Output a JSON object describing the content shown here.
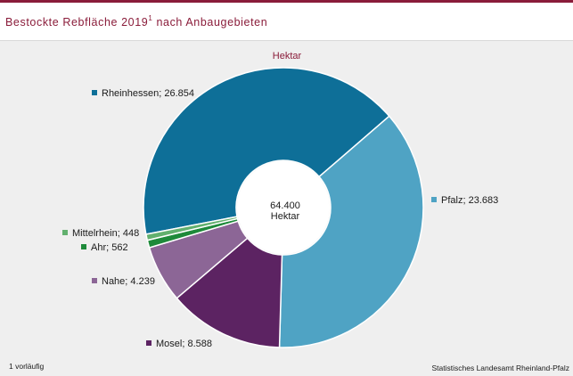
{
  "header": {
    "title": "Bestockte Rebfläche 2019",
    "title_mark": "1",
    "title_suffix": " nach Anbaugebieten"
  },
  "chart_data": {
    "type": "pie",
    "subtitle": "Hektar",
    "center_value": "64.400",
    "center_unit": "Hektar",
    "slices": [
      {
        "name": "Rheinhessen",
        "value": 26854,
        "label": "26.854",
        "color": "#0e6f98"
      },
      {
        "name": "Pfalz",
        "value": 23683,
        "label": "23.683",
        "color": "#4fa3c4"
      },
      {
        "name": "Mosel",
        "value": 8588,
        "label": "8.588",
        "color": "#5c2362"
      },
      {
        "name": "Nahe",
        "value": 4239,
        "label": "4.239",
        "color": "#8c6696"
      },
      {
        "name": "Ahr",
        "value": 562,
        "label": "562",
        "color": "#1e8a3a"
      },
      {
        "name": "Mittelrhein",
        "value": 448,
        "label": "448",
        "color": "#62b06e"
      }
    ]
  },
  "footer": {
    "footnote": "1 vorläufig",
    "source": "Statistisches Landesamt Rheinland-Pfalz"
  }
}
